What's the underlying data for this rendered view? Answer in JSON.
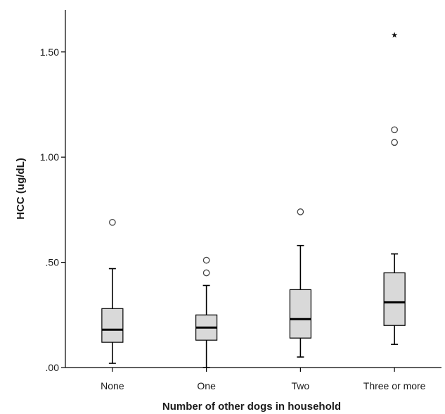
{
  "chart_data": {
    "type": "boxplot",
    "xlabel": "Number of other dogs in household",
    "ylabel": "HCC (ug/dL)",
    "ylim": [
      0,
      1.7
    ],
    "yticks": [
      {
        "value": 0.0,
        "label": ".00"
      },
      {
        "value": 0.5,
        "label": ".50"
      },
      {
        "value": 1.0,
        "label": "1.00"
      },
      {
        "value": 1.5,
        "label": "1.50"
      }
    ],
    "categories": [
      "None",
      "One",
      "Two",
      "Three or more"
    ],
    "boxes": [
      {
        "category": "None",
        "whisker_low": 0.02,
        "q1": 0.12,
        "median": 0.18,
        "q3": 0.28,
        "whisker_high": 0.47,
        "outliers": [
          0.69
        ],
        "extremes": []
      },
      {
        "category": "One",
        "whisker_low": 0.0,
        "q1": 0.13,
        "median": 0.19,
        "q3": 0.25,
        "whisker_high": 0.39,
        "outliers": [
          0.45,
          0.51
        ],
        "extremes": []
      },
      {
        "category": "Two",
        "whisker_low": 0.05,
        "q1": 0.14,
        "median": 0.23,
        "q3": 0.37,
        "whisker_high": 0.58,
        "outliers": [
          0.74
        ],
        "extremes": []
      },
      {
        "category": "Three or more",
        "whisker_low": 0.11,
        "q1": 0.2,
        "median": 0.31,
        "q3": 0.45,
        "whisker_high": 0.54,
        "outliers": [
          1.07,
          1.13
        ],
        "extremes": [
          1.58
        ]
      }
    ],
    "colors": {
      "box_fill": "#d9d9d9",
      "stroke": "#000000",
      "text": "#1a1a1a"
    },
    "grid": false
  }
}
